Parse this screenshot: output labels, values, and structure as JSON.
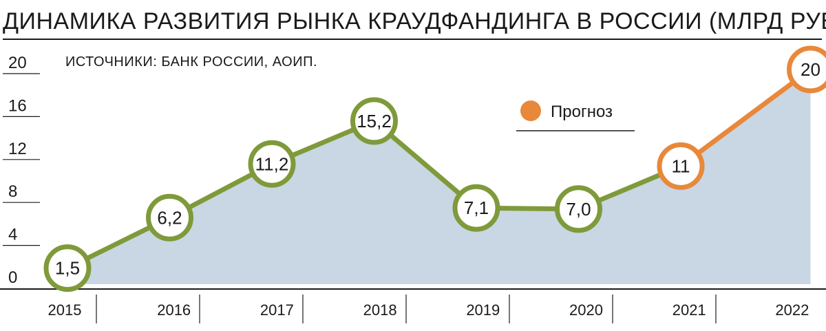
{
  "chart_data": {
    "type": "line",
    "title": "ДИНАМИКА РАЗВИТИЯ РЫНКА КРАУДФАНДИНГА В РОССИИ (МЛРД РУБ.)",
    "source": "ИСТОЧНИКИ: БАНК РОССИИ, АОИП.",
    "x": [
      "2015",
      "2016",
      "2017",
      "2018",
      "2019",
      "2020",
      "2021",
      "2022"
    ],
    "values": [
      1.5,
      6.2,
      11.2,
      15.2,
      7.1,
      7.0,
      11,
      20
    ],
    "labels": [
      "1,5",
      "6,2",
      "11,2",
      "15,2",
      "7,1",
      "7,0",
      "11",
      "20"
    ],
    "forecast": [
      false,
      false,
      false,
      false,
      false,
      false,
      true,
      true
    ],
    "yticks": [
      "0",
      "4",
      "8",
      "12",
      "16",
      "20"
    ],
    "ylim": [
      0,
      20
    ],
    "legend": {
      "forecast_label": "Прогноз",
      "placement": "top-right"
    },
    "colors": {
      "actual": "#7f9a3a",
      "forecast": "#e8883a",
      "area": "#c9d6e4",
      "line": "#1a1a1a"
    }
  }
}
